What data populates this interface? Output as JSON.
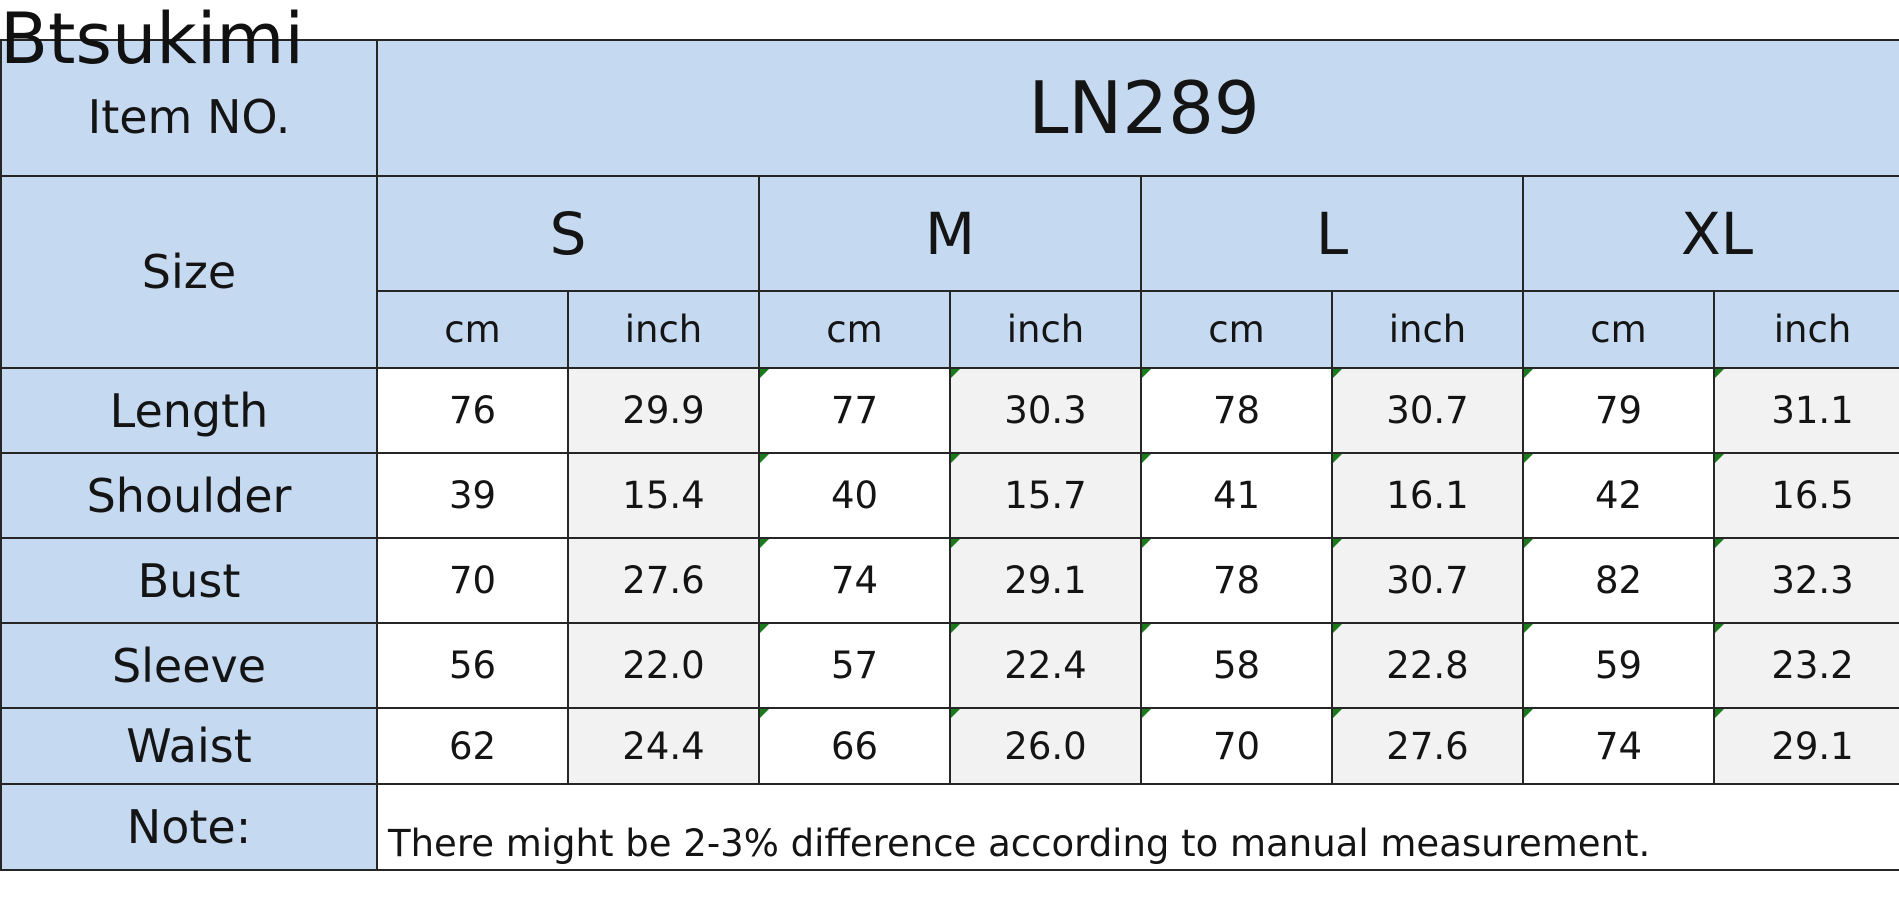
{
  "brand": "Btsukimi",
  "item_label": "Item NO.",
  "item_number": "LN289",
  "size_label": "Size",
  "sizes": [
    "S",
    "M",
    "L",
    "XL"
  ],
  "units": {
    "cm": "cm",
    "inch": "inch"
  },
  "rows": [
    {
      "label": "Length",
      "values": [
        "76",
        "29.9",
        "77",
        "30.3",
        "78",
        "30.7",
        "79",
        "31.1"
      ]
    },
    {
      "label": "Shoulder",
      "values": [
        "39",
        "15.4",
        "40",
        "15.7",
        "41",
        "16.1",
        "42",
        "16.5"
      ]
    },
    {
      "label": "Bust",
      "values": [
        "70",
        "27.6",
        "74",
        "29.1",
        "78",
        "30.7",
        "82",
        "32.3"
      ]
    },
    {
      "label": "Sleeve",
      "values": [
        "56",
        "22.0",
        "57",
        "22.4",
        "58",
        "22.8",
        "59",
        "23.2"
      ]
    },
    {
      "label": "Waist",
      "values": [
        "62",
        "24.4",
        "66",
        "26.0",
        "70",
        "27.6",
        "74",
        "29.1"
      ]
    }
  ],
  "note": {
    "label": "Note:",
    "text": "There might be 2-3% difference according to manual measurement."
  },
  "colors": {
    "header_fill": "#c5d9f1",
    "alt_cell_fill": "#f2f2f2",
    "grid_line": "#262626",
    "corner_marker": "#1b7a1b"
  }
}
